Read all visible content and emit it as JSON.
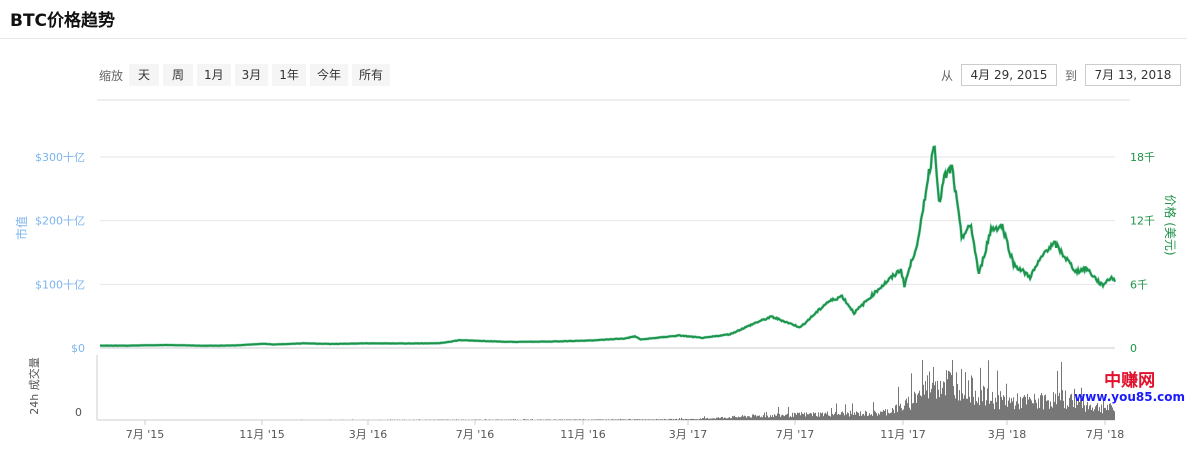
{
  "title": "BTC价格趋势",
  "zoom": {
    "label": "缩放",
    "buttons": [
      "天",
      "周",
      "1月",
      "3月",
      "1年",
      "今年",
      "所有"
    ]
  },
  "range": {
    "from_label": "从",
    "from": "4月 29, 2015",
    "to_label": "到",
    "to": "7月 13, 2018"
  },
  "watermark": {
    "line1": "中赚网",
    "line2": "www.you85.com"
  },
  "colors": {
    "price": "#1e9448",
    "marketcap": "#7cb5ec",
    "volume": "#777777",
    "grid": "#e6e6e6"
  },
  "chart_data": {
    "type": "line",
    "xrange": [
      "2015-04-29",
      "2018-07-13"
    ],
    "x_ticks": [
      "7月 '15",
      "11月 '15",
      "3月 '16",
      "7月 '16",
      "11月 '16",
      "3月 '17",
      "7月 '17",
      "11月 '17",
      "3月 '18",
      "7月 '18"
    ],
    "y_left": {
      "label": "市值",
      "ticks": [
        "$0",
        "$100十亿",
        "$200十亿",
        "$300十亿"
      ],
      "range": [
        0,
        300
      ]
    },
    "y_right": {
      "label": "价格 (美元)",
      "ticks": [
        "0",
        "6千",
        "12千",
        "18千"
      ],
      "range": [
        0,
        18000
      ]
    },
    "volume_axis": {
      "label": "24h 成交量",
      "ticks": [
        "0"
      ]
    },
    "grid": true,
    "price": [
      [
        "2015-04-29",
        225
      ],
      [
        "2015-06-01",
        225
      ],
      [
        "2015-07-15",
        285
      ],
      [
        "2015-08-25",
        215
      ],
      [
        "2015-10-01",
        237
      ],
      [
        "2015-11-04",
        400
      ],
      [
        "2015-11-15",
        330
      ],
      [
        "2015-12-20",
        440
      ],
      [
        "2016-01-20",
        380
      ],
      [
        "2016-03-01",
        435
      ],
      [
        "2016-04-15",
        425
      ],
      [
        "2016-05-25",
        450
      ],
      [
        "2016-06-17",
        740
      ],
      [
        "2016-07-15",
        660
      ],
      [
        "2016-08-15",
        570
      ],
      [
        "2016-10-01",
        610
      ],
      [
        "2016-11-15",
        710
      ],
      [
        "2016-12-25",
        900
      ],
      [
        "2017-01-05",
        1100
      ],
      [
        "2017-01-12",
        800
      ],
      [
        "2017-02-25",
        1180
      ],
      [
        "2017-03-25",
        950
      ],
      [
        "2017-04-25",
        1300
      ],
      [
        "2017-05-25",
        2400
      ],
      [
        "2017-06-12",
        2950
      ],
      [
        "2017-07-15",
        1950
      ],
      [
        "2017-08-15",
        4300
      ],
      [
        "2017-09-01",
        4900
      ],
      [
        "2017-09-15",
        3300
      ],
      [
        "2017-10-15",
        5700
      ],
      [
        "2017-11-08",
        7400
      ],
      [
        "2017-11-12",
        5900
      ],
      [
        "2017-11-29",
        10500
      ],
      [
        "2017-12-07",
        15000
      ],
      [
        "2017-12-17",
        19500
      ],
      [
        "2017-12-22",
        13500
      ],
      [
        "2017-12-28",
        16000
      ],
      [
        "2018-01-06",
        17000
      ],
      [
        "2018-01-17",
        10500
      ],
      [
        "2018-01-28",
        11500
      ],
      [
        "2018-02-06",
        6900
      ],
      [
        "2018-02-20",
        11200
      ],
      [
        "2018-03-05",
        11500
      ],
      [
        "2018-03-18",
        7900
      ],
      [
        "2018-04-06",
        6700
      ],
      [
        "2018-04-25",
        9300
      ],
      [
        "2018-05-05",
        9800
      ],
      [
        "2018-05-29",
        7200
      ],
      [
        "2018-06-10",
        7500
      ],
      [
        "2018-06-28",
        5900
      ],
      [
        "2018-07-09",
        6700
      ],
      [
        "2018-07-13",
        6250
      ]
    ],
    "volume_billion_usd": [
      [
        "2015-05",
        0.02
      ],
      [
        "2015-12",
        0.05
      ],
      [
        "2016-06",
        0.1
      ],
      [
        "2016-12",
        0.15
      ],
      [
        "2017-03",
        0.3
      ],
      [
        "2017-05",
        1.2
      ],
      [
        "2017-08",
        2.0
      ],
      [
        "2017-10",
        2.2
      ],
      [
        "2017-11",
        5
      ],
      [
        "2017-12",
        13
      ],
      [
        "2018-01",
        12
      ],
      [
        "2018-02",
        7
      ],
      [
        "2018-03",
        6
      ],
      [
        "2018-04",
        6
      ],
      [
        "2018-05",
        7
      ],
      [
        "2018-06",
        4.5
      ],
      [
        "2018-07",
        3.5
      ]
    ]
  }
}
